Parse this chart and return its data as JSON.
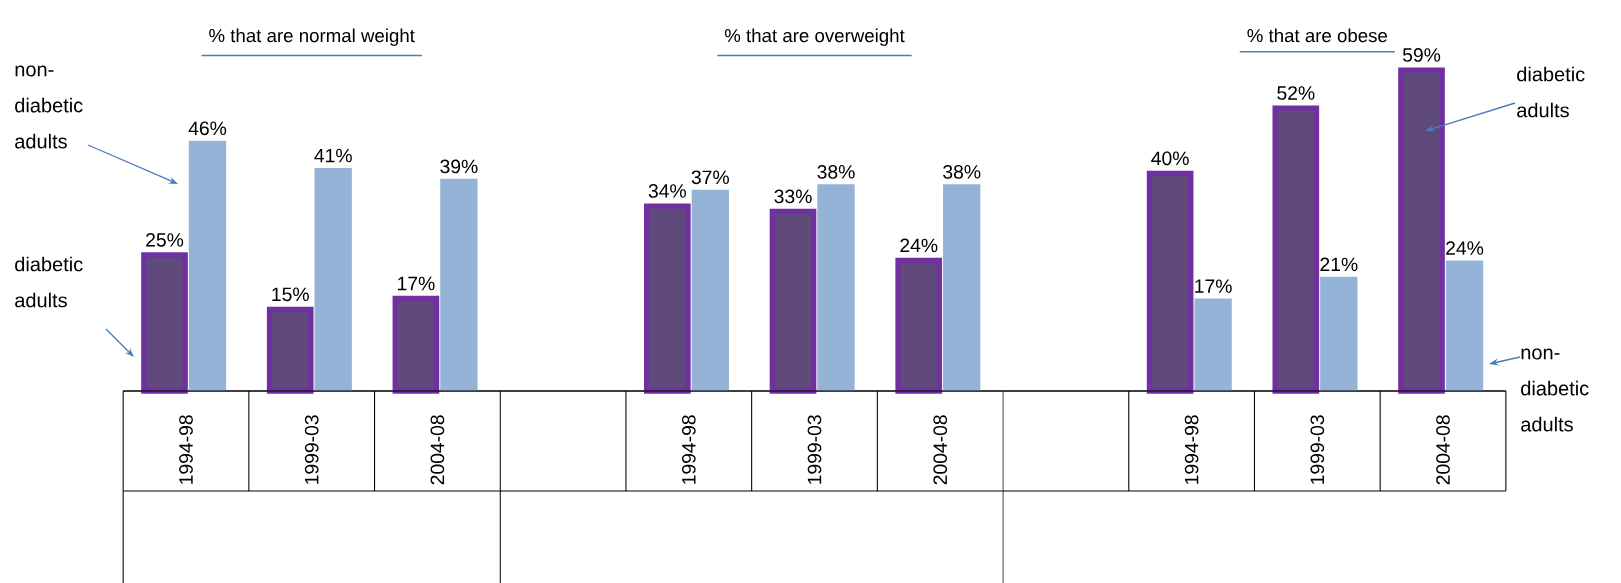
{
  "chart_data": {
    "type": "bar",
    "categories": [
      "1994-98",
      "1999-03",
      "2004-08",
      null,
      "1994-98",
      "1999-03",
      "2004-08",
      null,
      "1994-98",
      "1999-03",
      "2004-08"
    ],
    "series": [
      {
        "color": "#604a7b",
        "values": [
          25,
          15,
          17,
          null,
          34,
          33,
          24,
          null,
          40,
          52,
          59
        ],
        "value_labels": [
          "25%",
          "15%",
          "17%",
          null,
          "34%",
          "33%",
          "24%",
          null,
          "40%",
          "52%",
          "59%"
        ]
      },
      {
        "color": "#95b3d7",
        "values": [
          46,
          41,
          39,
          null,
          37,
          38,
          38,
          null,
          17,
          21,
          24
        ],
        "value_labels": [
          "46%",
          "41%",
          "39%",
          null,
          "37%",
          "38%",
          "38%",
          null,
          "17%",
          "21%",
          "24%"
        ]
      }
    ],
    "annotations": [
      "% that are normal weight",
      "% that are overweight",
      "% that are obese",
      "non-diabetic adults",
      "diabetic adults",
      "diabetic adults",
      "non-diabetic adults"
    ]
  }
}
